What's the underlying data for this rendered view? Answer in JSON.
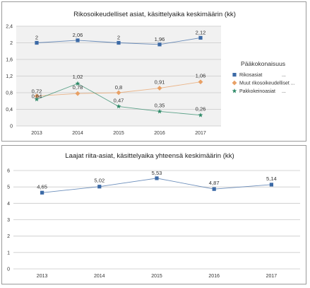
{
  "chart_data": [
    {
      "type": "line",
      "title": "Rikosoikeudelliset asiat, käsittelyaika keskimäärin (kk)",
      "categories": [
        "2013",
        "2014",
        "2015",
        "2016",
        "2017"
      ],
      "ylim": [
        0,
        2.4
      ],
      "yticks": [
        "0",
        "0,4",
        "0,8",
        "1,2",
        "1,6",
        "2",
        "2,4"
      ],
      "ytick_values": [
        0,
        0.4,
        0.8,
        1.2,
        1.6,
        2,
        2.4
      ],
      "grid": true,
      "legend": {
        "title": "Pääkokonaisuus",
        "placement": "right",
        "ellipsis": "..."
      },
      "series": [
        {
          "name": "Rikosasiat",
          "marker": "square",
          "color": "#3c6aa6",
          "values": [
            2,
            2.06,
            2,
            1.96,
            2.12
          ],
          "labels": [
            "2",
            "2,06",
            "2",
            "1,96",
            "2,12"
          ]
        },
        {
          "name": "Muut rikosoikeudelliset ...",
          "marker": "diamond",
          "color": "#e8a065",
          "values": [
            0.72,
            0.78,
            0.8,
            0.91,
            1.06
          ],
          "labels": [
            "0,72",
            "0,78",
            "0,8",
            "0,91",
            "1,06"
          ]
        },
        {
          "name": "Pakkokeinoasiat",
          "marker": "star",
          "color": "#2e8a68",
          "values": [
            0.64,
            1.02,
            0.47,
            0.35,
            0.26
          ],
          "labels": [
            "0,64",
            "1,02",
            "0,47",
            "0,35",
            "0,26"
          ]
        }
      ]
    },
    {
      "type": "line",
      "title": "Laajat riita-asiat, käsittelyaika yhteensä keskimäärin (kk)",
      "categories": [
        "2013",
        "2014",
        "2015",
        "2016",
        "2017"
      ],
      "ylim": [
        0,
        6
      ],
      "yticks": [
        "0",
        "1",
        "2",
        "3",
        "4",
        "5",
        "6"
      ],
      "ytick_values": [
        0,
        1,
        2,
        3,
        4,
        5,
        6
      ],
      "grid": true,
      "series": [
        {
          "marker": "square",
          "color": "#3c6aa6",
          "values": [
            4.65,
            5.02,
            5.53,
            4.87,
            5.14
          ],
          "labels": [
            "4,65",
            "5,02",
            "5,53",
            "4,87",
            "5,14"
          ]
        }
      ]
    }
  ]
}
